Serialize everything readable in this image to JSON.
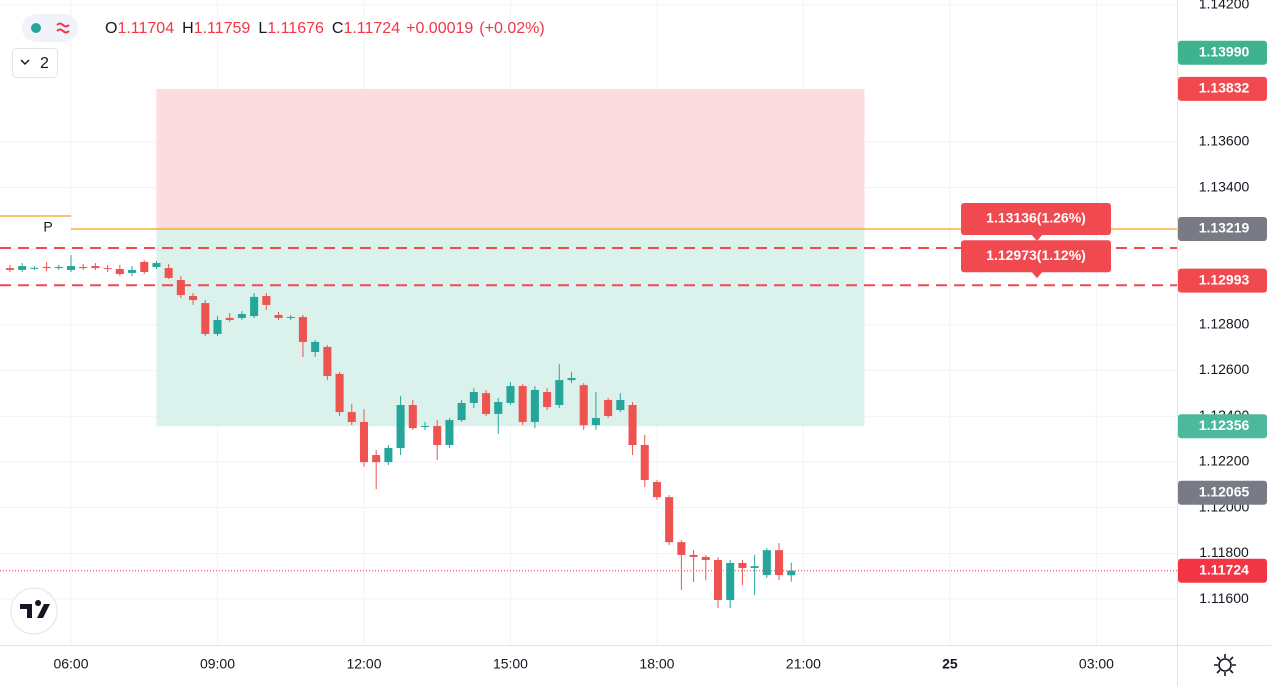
{
  "chart_data": {
    "type": "candlestick",
    "header": {
      "open_label": "O",
      "open": "1.11704",
      "high_label": "H",
      "high": "1.11759",
      "low_label": "L",
      "low": "1.11676",
      "close_label": "C",
      "close": "1.11724",
      "change": "+0.00019",
      "change_pct": "(+0.02%)"
    },
    "interval_badge": "2",
    "x": [
      4.75,
      5,
      5.25,
      5.5,
      5.75,
      6,
      6.25,
      6.5,
      6.75,
      7,
      7.25,
      7.5,
      7.75,
      8,
      8.25,
      8.5,
      8.75,
      9,
      9.25,
      9.5,
      9.75,
      10,
      10.25,
      10.5,
      10.75,
      11,
      11.25,
      11.5,
      11.75,
      12,
      12.25,
      12.5,
      12.75,
      13,
      13.25,
      13.5,
      13.75,
      14,
      14.25,
      14.5,
      14.75,
      15,
      15.25,
      15.5,
      15.75,
      16,
      16.25,
      16.5,
      16.75,
      17,
      17.25,
      17.5,
      17.75,
      18,
      18.25,
      18.5,
      18.75,
      19,
      19.25,
      19.5,
      19.75,
      20,
      20.25,
      20.5,
      20.75
    ],
    "open": [
      1.13048,
      1.1304,
      1.13048,
      1.13053,
      1.13048,
      1.1304,
      1.13053,
      1.13057,
      1.13048,
      1.13044,
      1.13027,
      1.13075,
      1.13053,
      1.13048,
      1.12996,
      1.12926,
      1.12895,
      1.1276,
      1.1283,
      1.1283,
      1.12838,
      1.12926,
      1.12843,
      1.1283,
      1.12834,
      1.12681,
      1.12703,
      1.12585,
      1.12418,
      1.12375,
      1.1223,
      1.12199,
      1.12261,
      1.12449,
      1.12353,
      1.12357,
      1.12274,
      1.12383,
      1.12458,
      1.12501,
      1.1241,
      1.12458,
      1.12532,
      1.12375,
      1.12506,
      1.12449,
      1.12558,
      1.12536,
      1.12361,
      1.12471,
      1.12427,
      1.12449,
      1.12274,
      1.12112,
      1.12046,
      1.11849,
      1.11793,
      1.11784,
      1.11771,
      1.11596,
      1.11758,
      1.11736,
      1.11705,
      1.11814,
      1.11704
    ],
    "high": [
      1.13062,
      1.1307,
      1.13057,
      1.13075,
      1.13062,
      1.13105,
      1.13066,
      1.1307,
      1.13062,
      1.13062,
      1.13057,
      1.13083,
      1.13079,
      1.13066,
      1.13013,
      1.12939,
      1.12908,
      1.12838,
      1.12852,
      1.1286,
      1.12939,
      1.12939,
      1.12856,
      1.12843,
      1.12843,
      1.12733,
      1.12711,
      1.12593,
      1.12453,
      1.12431,
      1.12252,
      1.12274,
      1.12488,
      1.12471,
      1.12375,
      1.12383,
      1.12392,
      1.12471,
      1.12523,
      1.12515,
      1.1248,
      1.1255,
      1.12541,
      1.12532,
      1.12523,
      1.12628,
      1.12593,
      1.12545,
      1.12506,
      1.1248,
      1.12501,
      1.12462,
      1.12318,
      1.12121,
      1.12055,
      1.11858,
      1.11814,
      1.11793,
      1.11784,
      1.11771,
      1.11771,
      1.11793,
      1.11823,
      1.11845,
      1.11759
    ],
    "low": [
      1.13031,
      1.13031,
      1.1304,
      1.13035,
      1.1304,
      1.13031,
      1.1304,
      1.1304,
      1.13031,
      1.13013,
      1.13013,
      1.13022,
      1.13044,
      1.13,
      1.12917,
      1.12887,
      1.12751,
      1.12751,
      1.12812,
      1.12821,
      1.1283,
      1.12865,
      1.12821,
      1.12821,
      1.12659,
      1.12659,
      1.12558,
      1.12401,
      1.12361,
      1.12178,
      1.12081,
      1.12186,
      1.1223,
      1.1234,
      1.1234,
      1.12208,
      1.12261,
      1.12375,
      1.12436,
      1.12401,
      1.12322,
      1.12449,
      1.12361,
      1.12348,
      1.12427,
      1.12436,
      1.12545,
      1.1234,
      1.1234,
      1.12392,
      1.12418,
      1.1223,
      1.1209,
      1.12033,
      1.11836,
      1.11639,
      1.11674,
      1.11683,
      1.11561,
      1.11561,
      1.11661,
      1.11618,
      1.11692,
      1.11683,
      1.11676
    ],
    "close": [
      1.1304,
      1.13057,
      1.13049,
      1.13048,
      1.13053,
      1.13057,
      1.13048,
      1.13048,
      1.13044,
      1.13022,
      1.1304,
      1.13031,
      1.1307,
      1.13005,
      1.1293,
      1.12908,
      1.1276,
      1.12821,
      1.12821,
      1.12847,
      1.12922,
      1.12887,
      1.1283,
      1.12834,
      1.12725,
      1.12725,
      1.12576,
      1.12418,
      1.12375,
      1.12199,
      1.12199,
      1.12261,
      1.12449,
      1.12348,
      1.12357,
      1.12274,
      1.12383,
      1.12458,
      1.12506,
      1.1241,
      1.12462,
      1.12532,
      1.12375,
      1.12515,
      1.1244,
      1.12558,
      1.12567,
      1.12361,
      1.12392,
      1.12401,
      1.12471,
      1.12274,
      1.12121,
      1.12046,
      1.11849,
      1.11793,
      1.11784,
      1.11771,
      1.11596,
      1.11758,
      1.11736,
      1.11744,
      1.11814,
      1.11705,
      1.11724
    ],
    "up_color": "#26a69a",
    "down_color": "#ef5350",
    "xlim": [
      4.546,
      28.65
    ],
    "ylim": [
      1.11399,
      1.14221
    ],
    "xticks": [
      {
        "value": 6,
        "label": "06:00"
      },
      {
        "value": 9,
        "label": "09:00"
      },
      {
        "value": 12,
        "label": "12:00"
      },
      {
        "value": 15,
        "label": "15:00"
      },
      {
        "value": 18,
        "label": "18:00"
      },
      {
        "value": 21,
        "label": "21:00"
      },
      {
        "value": 24,
        "label": "25"
      },
      {
        "value": 27,
        "label": "03:00"
      }
    ],
    "yticks": [
      {
        "value": 1.142,
        "label": "1.14200"
      },
      {
        "value": 1.136,
        "label": "1.13600"
      },
      {
        "value": 1.134,
        "label": "1.13400"
      },
      {
        "value": 1.128,
        "label": "1.12800"
      },
      {
        "value": 1.126,
        "label": "1.12600"
      },
      {
        "value": 1.124,
        "label": "1.12400"
      },
      {
        "value": 1.122,
        "label": "1.12200"
      },
      {
        "value": 1.12,
        "label": "1.12000"
      },
      {
        "value": 1.118,
        "label": "1.11800"
      },
      {
        "value": 1.116,
        "label": "1.11600"
      }
    ],
    "grid": true,
    "position": {
      "entry": 1.13219,
      "stop": 1.13832,
      "target": 1.12356,
      "x_start": 7.75,
      "x_end": 22.25,
      "stop_color": "#fcdcde",
      "target_color": "#daf1ec"
    },
    "pivot": {
      "label": "P",
      "color": "#f7a21b",
      "levels": [
        {
          "from": 4.546,
          "to": 6,
          "value": 1.13276
        },
        {
          "from": 6,
          "to": 28.65,
          "value": 1.13219
        }
      ]
    },
    "dashed_lines": [
      {
        "value": 1.13136,
        "label": "1.13136(1.26%)"
      },
      {
        "value": 1.12973,
        "label": "1.12973(1.12%)"
      }
    ],
    "last_price": 1.11724,
    "price_labels": [
      {
        "value": 1.1399,
        "label": "1.13990",
        "color": "#3fb28f"
      },
      {
        "value": 1.13832,
        "label": "1.13832",
        "color": "#f04a50"
      },
      {
        "value": 1.13219,
        "label": "1.13219",
        "color": "#787b86"
      },
      {
        "value": 1.12993,
        "label": "1.12993",
        "color": "#f04a50"
      },
      {
        "value": 1.12356,
        "label": "1.12356",
        "color": "#4cb89c"
      },
      {
        "value": 1.12065,
        "label": "1.12065",
        "color": "#787b86"
      },
      {
        "value": 1.11724,
        "label": "1.11724",
        "color": "#f23645"
      }
    ]
  }
}
